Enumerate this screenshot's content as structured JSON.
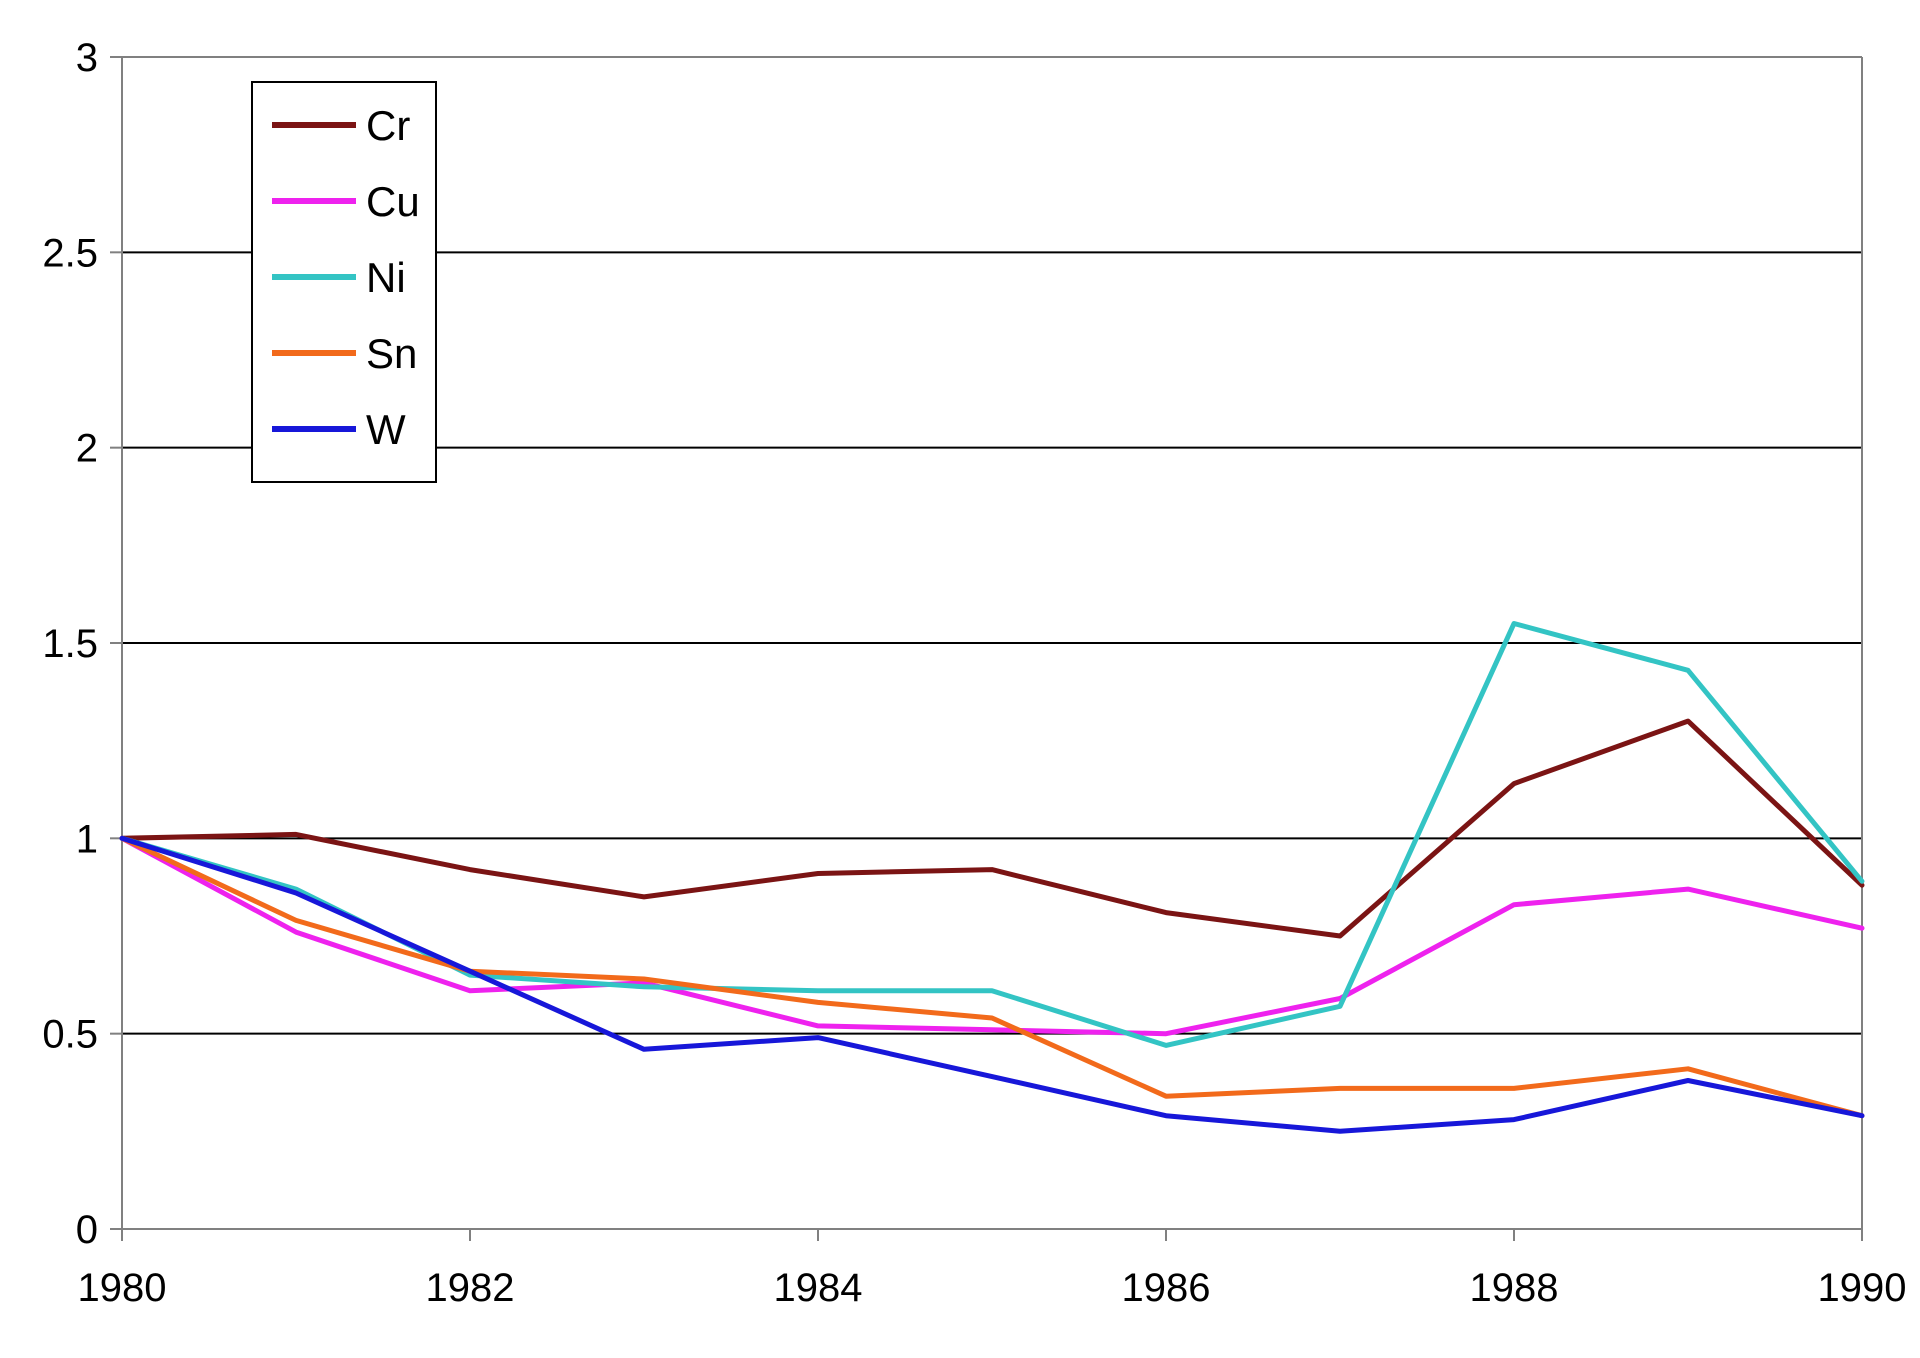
{
  "chart_data": {
    "type": "line",
    "title": "",
    "xlabel": "",
    "ylabel": "",
    "x": [
      1980,
      1981,
      1982,
      1983,
      1984,
      1985,
      1986,
      1987,
      1988,
      1989,
      1990
    ],
    "xlim": [
      1980,
      1990
    ],
    "ylim": [
      0,
      3
    ],
    "xticks": [
      "1980",
      "1982",
      "1984",
      "1986",
      "1988",
      "1990"
    ],
    "yticks": [
      "0",
      "0.5",
      "1",
      "1.5",
      "2",
      "2.5",
      "3"
    ],
    "grid": "horizontal",
    "legend_position": "top-left",
    "series": [
      {
        "name": "Cr",
        "color": "#7b1414",
        "values": [
          1.0,
          1.01,
          0.92,
          0.85,
          0.91,
          0.92,
          0.81,
          0.75,
          1.14,
          1.3,
          0.88
        ]
      },
      {
        "name": "Cu",
        "color": "#ee22ee",
        "values": [
          1.0,
          0.76,
          0.61,
          0.63,
          0.52,
          0.51,
          0.5,
          0.59,
          0.83,
          0.87,
          0.77
        ]
      },
      {
        "name": "Ni",
        "color": "#33c4c4",
        "values": [
          1.0,
          0.87,
          0.65,
          0.62,
          0.61,
          0.61,
          0.47,
          0.57,
          1.55,
          1.43,
          0.89
        ]
      },
      {
        "name": "Sn",
        "color": "#f26a1b",
        "values": [
          1.0,
          0.79,
          0.66,
          0.64,
          0.58,
          0.54,
          0.34,
          0.36,
          0.36,
          0.41,
          0.29
        ]
      },
      {
        "name": "W",
        "color": "#1717d9",
        "values": [
          1.0,
          0.86,
          0.66,
          0.46,
          0.49,
          0.39,
          0.29,
          0.25,
          0.28,
          0.38,
          0.29
        ]
      }
    ]
  }
}
